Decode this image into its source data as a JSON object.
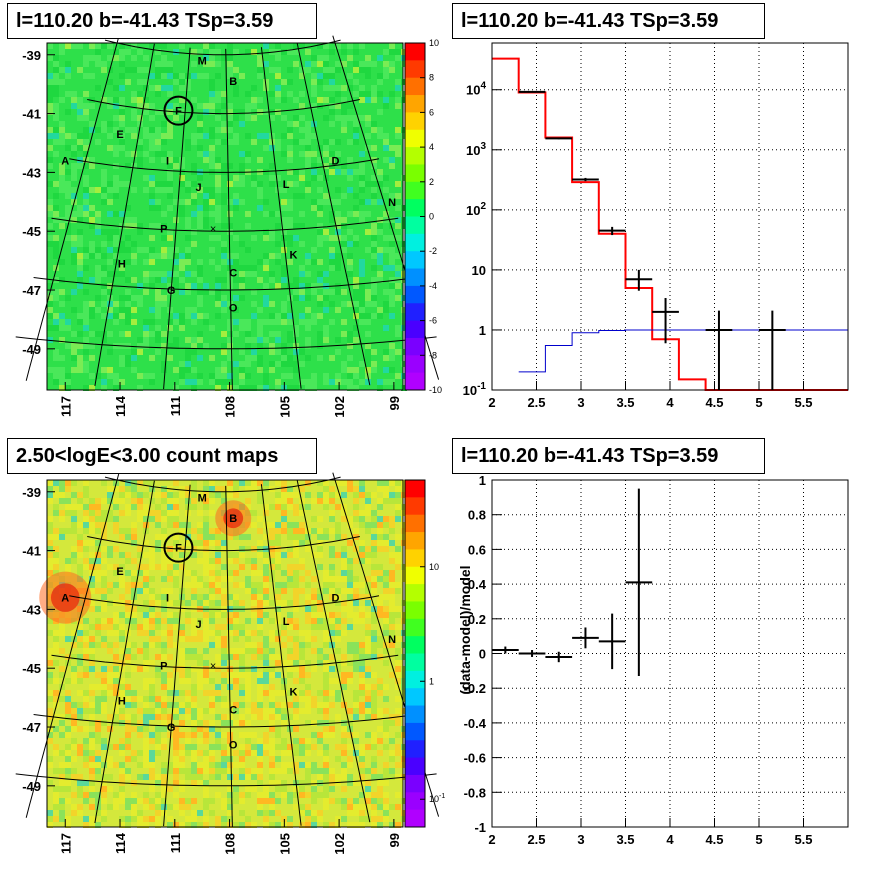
{
  "titles": {
    "sky_map": "l=110.20 b=-41.43 TSp=3.59",
    "spectrum": "l=110.20 b=-41.43 TSp=3.59",
    "count_map": "2.50<logE<3.00 count maps",
    "residual": "l=110.20 b=-41.43 TSp=3.59"
  },
  "source_labels": [
    "M",
    "B",
    "F",
    "E",
    "A",
    "I",
    "D",
    "J",
    "L",
    "N",
    "P",
    "K",
    "H",
    "C",
    "G",
    "O"
  ],
  "chart_data": [
    {
      "type": "heatmap",
      "title": "l=110.20 b=-41.43 TSp=3.59",
      "x_ticks": [
        "117",
        "114",
        "111",
        "108",
        "105",
        "102",
        "99"
      ],
      "y_ticks": [
        "-39",
        "-41",
        "-43",
        "-45",
        "-47",
        "-49"
      ],
      "xlim": [
        118,
        98.5
      ],
      "ylim": [
        -50.4,
        -38.6
      ],
      "colorbar": {
        "min": -10,
        "max": 10,
        "ticks": [
          "10",
          "8",
          "6",
          "4",
          "2",
          "0",
          "-2",
          "-4",
          "-6",
          "-8",
          "-10"
        ]
      },
      "sources": [
        {
          "label": "M",
          "l": 109.5,
          "b": -39.2
        },
        {
          "label": "B",
          "l": 107.8,
          "b": -39.9
        },
        {
          "label": "F",
          "l": 110.8,
          "b": -40.9
        },
        {
          "label": "E",
          "l": 114.0,
          "b": -41.7
        },
        {
          "label": "A",
          "l": 117.0,
          "b": -42.6
        },
        {
          "label": "I",
          "l": 111.4,
          "b": -42.6
        },
        {
          "label": "D",
          "l": 102.2,
          "b": -42.6
        },
        {
          "label": "J",
          "l": 109.7,
          "b": -43.5
        },
        {
          "label": "L",
          "l": 104.9,
          "b": -43.4
        },
        {
          "label": "N",
          "l": 99.1,
          "b": -44.0
        },
        {
          "label": "P",
          "l": 111.6,
          "b": -44.9
        },
        {
          "label": "K",
          "l": 104.5,
          "b": -45.8
        },
        {
          "label": "H",
          "l": 113.9,
          "b": -46.1
        },
        {
          "label": "C",
          "l": 107.8,
          "b": -46.4
        },
        {
          "label": "G",
          "l": 111.2,
          "b": -47.0
        },
        {
          "label": "O",
          "l": 107.8,
          "b": -47.6
        }
      ]
    },
    {
      "type": "line",
      "title": "l=110.20 b=-41.43 TSp=3.59",
      "x_ticks": [
        "2",
        "2.5",
        "3",
        "3.5",
        "4",
        "4.5",
        "5",
        "5.5"
      ],
      "y_ticks": [
        "10^-1",
        "1",
        "10",
        "10^2",
        "10^3",
        "10^4"
      ],
      "xlim": [
        2,
        6
      ],
      "ylim": [
        0.1,
        60000
      ],
      "yscale": "log",
      "series": [
        {
          "color": "#ff0000",
          "edges": [
            2.0,
            2.3,
            2.6,
            2.9,
            3.2,
            3.5,
            3.8,
            4.1,
            4.4,
            6.0
          ],
          "values": [
            33000,
            9000,
            1600,
            290,
            40,
            5,
            0.7,
            0.15,
            0.1
          ]
        },
        {
          "color": "#0000cc",
          "edges": [
            2.3,
            2.6,
            2.9,
            3.2,
            3.5,
            3.8,
            4.1,
            6.0
          ],
          "values": [
            0.2,
            0.55,
            0.9,
            0.98,
            1.0,
            1.0,
            1.0
          ]
        },
        {
          "color": "#000000",
          "type": "points",
          "points": [
            {
              "x": 2.45,
              "y": 9200,
              "xerr": 0.15,
              "ylo": 9000,
              "yhi": 9400
            },
            {
              "x": 2.75,
              "y": 1550,
              "xerr": 0.15,
              "ylo": 1500,
              "yhi": 1600
            },
            {
              "x": 3.05,
              "y": 320,
              "xerr": 0.15,
              "ylo": 300,
              "yhi": 340
            },
            {
              "x": 3.35,
              "y": 45,
              "xerr": 0.15,
              "ylo": 38,
              "yhi": 52
            },
            {
              "x": 3.65,
              "y": 7,
              "xerr": 0.15,
              "ylo": 4.5,
              "yhi": 10
            },
            {
              "x": 3.95,
              "y": 2,
              "xerr": 0.15,
              "ylo": 0.6,
              "yhi": 3.4
            },
            {
              "x": 4.55,
              "y": 1,
              "xerr": 0.15,
              "ylo": 0.1,
              "yhi": 2.1
            },
            {
              "x": 5.15,
              "y": 1,
              "xerr": 0.15,
              "ylo": 0.1,
              "yhi": 2.1
            }
          ]
        }
      ]
    },
    {
      "type": "heatmap",
      "title": "2.50<logE<3.00 count maps",
      "x_ticks": [
        "117",
        "114",
        "111",
        "108",
        "105",
        "102",
        "99"
      ],
      "y_ticks": [
        "-39",
        "-41",
        "-43",
        "-45",
        "-47",
        "-49"
      ],
      "xlim": [
        118,
        98.5
      ],
      "ylim": [
        -50.4,
        -38.6
      ],
      "colorbar": {
        "scale": "log",
        "ticks": [
          "10",
          "1",
          "10^-1"
        ]
      }
    },
    {
      "type": "scatter",
      "title": "l=110.20 b=-41.43 TSp=3.59",
      "ylabel": "(data-model)/model",
      "x_ticks": [
        "2",
        "2.5",
        "3",
        "3.5",
        "4",
        "4.5",
        "5",
        "5.5"
      ],
      "y_ticks": [
        "-1",
        "-0.8",
        "-0.6",
        "-0.4",
        "-0.2",
        "0",
        "0.2",
        "0.4",
        "0.6",
        "0.8",
        "1"
      ],
      "xlim": [
        2,
        6
      ],
      "ylim": [
        -1,
        1
      ],
      "points": [
        {
          "x": 2.15,
          "y": 0.02,
          "xerr": 0.15,
          "yerr": 0.02
        },
        {
          "x": 2.45,
          "y": 0.0,
          "xerr": 0.15,
          "yerr": 0.02
        },
        {
          "x": 2.75,
          "y": -0.02,
          "xerr": 0.15,
          "yerr": 0.03
        },
        {
          "x": 3.05,
          "y": 0.09,
          "xerr": 0.15,
          "yerr": 0.06
        },
        {
          "x": 3.35,
          "y": 0.07,
          "xerr": 0.15,
          "yerr": 0.16
        },
        {
          "x": 3.65,
          "y": 0.41,
          "xerr": 0.15,
          "yerr": 0.54
        }
      ]
    }
  ]
}
